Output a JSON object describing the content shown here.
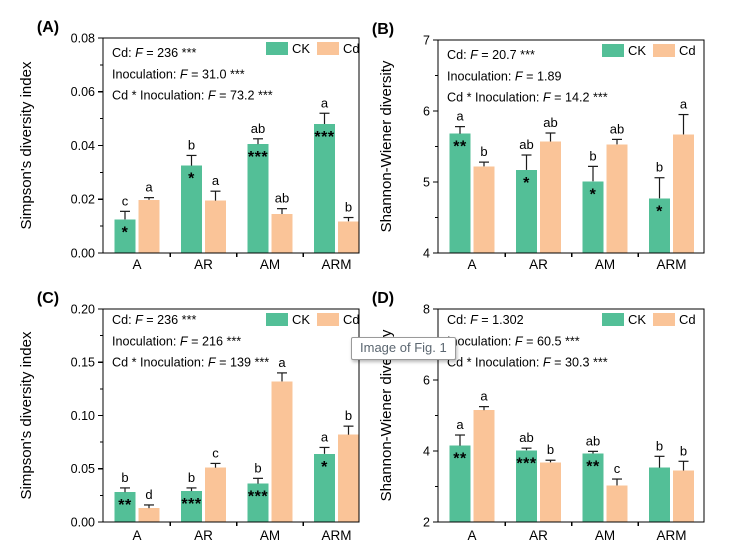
{
  "tooltip": {
    "text": "Image of Fig. 1"
  },
  "colors": {
    "ck": "#53bf97",
    "cd": "#fac498",
    "error": "#1a1a1a",
    "axis": "#000000",
    "text": "#000000"
  },
  "legend": {
    "position": "top-right",
    "labels": [
      "CK",
      "Cd"
    ]
  },
  "chart_data": [
    {
      "type": "bar",
      "panel_label": "(A)",
      "ylabel": "Simpson's diversity index",
      "ylim": [
        0,
        0.08
      ],
      "yticks": [
        0,
        0.02,
        0.04,
        0.06,
        0.08
      ],
      "ytick_labels": [
        "0.00",
        "0.02",
        "0.04",
        "0.06",
        "0.08"
      ],
      "minor_step": 0.01,
      "grid": false,
      "categories": [
        "A",
        "AR",
        "AM",
        "ARM"
      ],
      "stats": [
        "Cd: F = 236 ***",
        "Inoculation: F = 31.0 ***",
        "Cd * Inoculation: F = 73.2 ***"
      ],
      "series": [
        {
          "name": "CK",
          "color_key": "ck",
          "values": [
            0.0125,
            0.0325,
            0.0405,
            0.048
          ],
          "errors": [
            0.003,
            0.0038,
            0.002,
            0.004
          ],
          "letters": [
            "c",
            "b",
            "ab",
            "a"
          ],
          "stars": [
            "*",
            "*",
            "***",
            "***"
          ]
        },
        {
          "name": "Cd",
          "color_key": "cd",
          "values": [
            0.0198,
            0.0195,
            0.0145,
            0.0118
          ],
          "errors": [
            0.0008,
            0.0035,
            0.002,
            0.0014
          ],
          "letters": [
            "a",
            "a",
            "ab",
            "b"
          ],
          "stars": [
            "",
            "",
            "",
            ""
          ]
        }
      ]
    },
    {
      "type": "bar",
      "panel_label": "(B)",
      "ylabel": "Shannon-Wiener diversity",
      "ylim": [
        4,
        7
      ],
      "yticks": [
        4,
        5,
        6,
        7
      ],
      "ytick_labels": [
        "4",
        "5",
        "6",
        "7"
      ],
      "minor_step": 0.5,
      "grid": false,
      "categories": [
        "A",
        "AR",
        "AM",
        "ARM"
      ],
      "stats": [
        "Cd: F = 20.7 ***",
        "Inoculation: F = 1.89",
        "Cd * Inoculation: F = 14.2 ***"
      ],
      "series": [
        {
          "name": "CK",
          "color_key": "ck",
          "values": [
            5.68,
            5.17,
            5.01,
            4.77
          ],
          "errors": [
            0.1,
            0.21,
            0.21,
            0.29
          ],
          "letters": [
            "a",
            "ab",
            "b",
            "b"
          ],
          "stars": [
            "**",
            "*",
            "*",
            "*"
          ]
        },
        {
          "name": "Cd",
          "color_key": "cd",
          "values": [
            5.22,
            5.57,
            5.53,
            5.67
          ],
          "errors": [
            0.06,
            0.12,
            0.07,
            0.28
          ],
          "letters": [
            "b",
            "ab",
            "ab",
            "a"
          ],
          "stars": [
            "",
            "",
            "",
            ""
          ]
        }
      ]
    },
    {
      "type": "bar",
      "panel_label": "(C)",
      "ylabel": "Simpson's diversity index",
      "ylim": [
        0,
        0.2
      ],
      "yticks": [
        0,
        0.05,
        0.1,
        0.15,
        0.2
      ],
      "ytick_labels": [
        "0.00",
        "0.05",
        "0.10",
        "0.15",
        "0.20"
      ],
      "minor_step": 0.025,
      "grid": false,
      "categories": [
        "A",
        "AR",
        "AM",
        "ARM"
      ],
      "stats": [
        "Cd: F = 236 ***",
        "Inoculation: F = 216 ***",
        "Cd * Inoculation: F = 139 ***"
      ],
      "series": [
        {
          "name": "CK",
          "color_key": "ck",
          "values": [
            0.028,
            0.029,
            0.036,
            0.064
          ],
          "errors": [
            0.004,
            0.003,
            0.005,
            0.006
          ],
          "letters": [
            "b",
            "b",
            "b",
            "a"
          ],
          "stars": [
            "**",
            "***",
            "***",
            "*"
          ]
        },
        {
          "name": "Cd",
          "color_key": "cd",
          "values": [
            0.013,
            0.051,
            0.132,
            0.082
          ],
          "errors": [
            0.003,
            0.004,
            0.008,
            0.008
          ],
          "letters": [
            "d",
            "c",
            "a",
            "b"
          ],
          "stars": [
            "",
            "",
            "",
            ""
          ]
        }
      ]
    },
    {
      "type": "bar",
      "panel_label": "(D)",
      "ylabel": "Shannon-Wiener diversity",
      "ylim": [
        2,
        8
      ],
      "yticks": [
        2,
        4,
        6,
        8
      ],
      "ytick_labels": [
        "2",
        "4",
        "6",
        "8"
      ],
      "minor_step": 1,
      "grid": false,
      "categories": [
        "A",
        "AR",
        "AM",
        "ARM"
      ],
      "stats": [
        "Cd: F = 1.302",
        "Inoculation: F = 60.5 ***",
        "Cd * Inoculation: F = 30.3 ***"
      ],
      "series": [
        {
          "name": "CK",
          "color_key": "ck",
          "values": [
            4.15,
            4.02,
            3.93,
            3.53
          ],
          "errors": [
            0.3,
            0.06,
            0.06,
            0.32
          ],
          "letters": [
            "a",
            "ab",
            "ab",
            "b"
          ],
          "stars": [
            "**",
            "***",
            "**",
            ""
          ]
        },
        {
          "name": "Cd",
          "color_key": "cd",
          "values": [
            5.15,
            3.68,
            3.03,
            3.45
          ],
          "errors": [
            0.1,
            0.06,
            0.18,
            0.26
          ],
          "letters": [
            "a",
            "b",
            "c",
            "b"
          ],
          "stars": [
            "",
            "",
            "",
            ""
          ]
        }
      ]
    }
  ]
}
